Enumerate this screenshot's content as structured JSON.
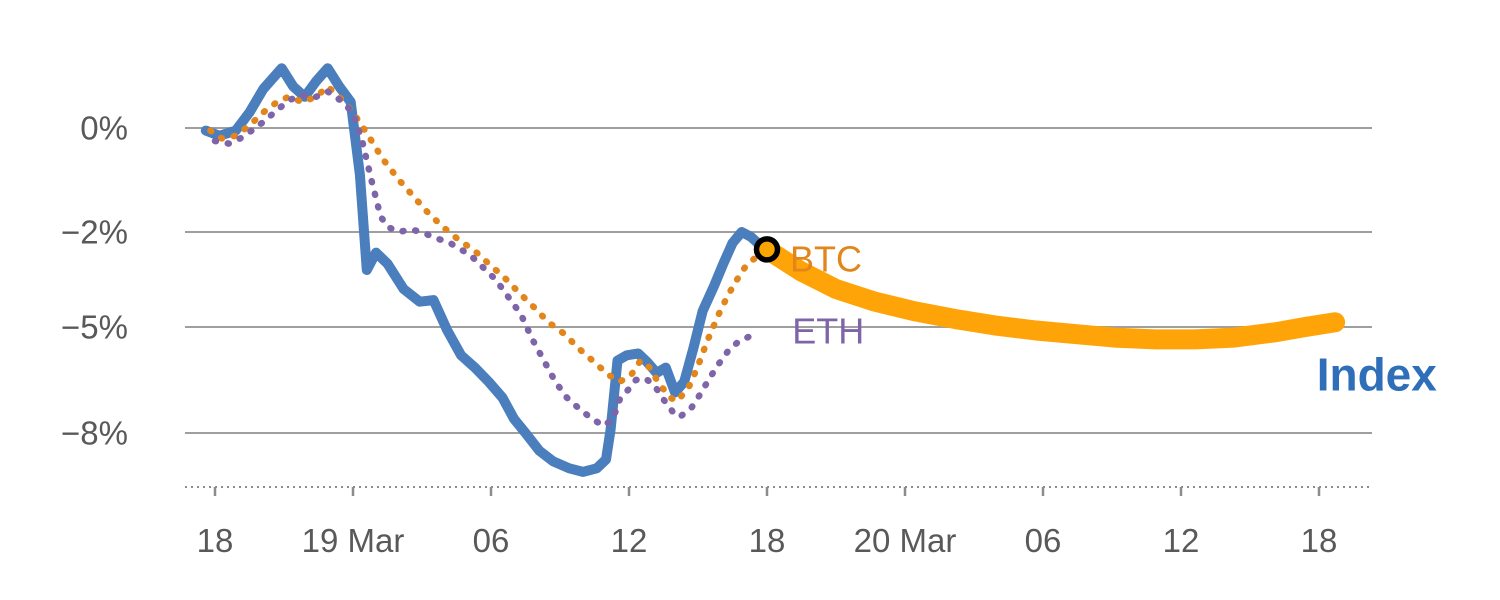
{
  "chart_data": {
    "type": "line",
    "title": "",
    "xlabel": "",
    "ylabel": "",
    "x_unit": "hours since 18:00 on 18 Mar",
    "ylim": [
      -9.5,
      1.6
    ],
    "xlim_hours": [
      -0.5,
      49
    ],
    "grid": true,
    "legend": "inline-labels",
    "colors": {
      "index_line": "#4a7ebc",
      "index_label": "#2f6fba",
      "btc": "#e2851b",
      "eth": "#7e64a8",
      "forecast_band": "#ffa408",
      "marker_fill": "#f9a602",
      "marker_ring": "#000000",
      "gridline": "#9f9f9f",
      "axis": "#8c8c8c",
      "tick_text": "#595959"
    },
    "y_ticks": [
      {
        "label": "0%",
        "value": 0
      },
      {
        "label": "−2%",
        "value": -2
      },
      {
        "label": "−5%",
        "value": -5
      },
      {
        "label": "−8%",
        "value": -8
      }
    ],
    "x_ticks": [
      {
        "label": "18",
        "t": 0
      },
      {
        "label": "19 Mar",
        "t": 6
      },
      {
        "label": "06",
        "t": 12
      },
      {
        "label": "12",
        "t": 18
      },
      {
        "label": "18",
        "t": 24
      },
      {
        "label": "20 Mar",
        "t": 30
      },
      {
        "label": "06",
        "t": 36
      },
      {
        "label": "12",
        "t": 42
      },
      {
        "label": "18",
        "t": 48
      }
    ],
    "series": [
      {
        "name": "Index",
        "color": "#4a7ebc",
        "style": "solid",
        "stroke_width": 10,
        "points": [
          [
            -0.4,
            -0.05
          ],
          [
            0.2,
            -0.15
          ],
          [
            0.9,
            -0.05
          ],
          [
            1.5,
            0.3
          ],
          [
            2.1,
            0.75
          ],
          [
            2.9,
            1.15
          ],
          [
            3.4,
            0.8
          ],
          [
            3.9,
            0.6
          ],
          [
            4.4,
            0.9
          ],
          [
            4.9,
            1.15
          ],
          [
            5.4,
            0.8
          ],
          [
            5.9,
            0.5
          ],
          [
            6.3,
            -0.9
          ],
          [
            6.6,
            -3.2
          ],
          [
            7.0,
            -2.65
          ],
          [
            7.5,
            -3.0
          ],
          [
            8.2,
            -3.8
          ],
          [
            8.9,
            -4.2
          ],
          [
            9.5,
            -4.15
          ],
          [
            10.1,
            -5.1
          ],
          [
            10.7,
            -5.8
          ],
          [
            11.3,
            -6.15
          ],
          [
            11.9,
            -6.55
          ],
          [
            12.5,
            -7.0
          ],
          [
            13.0,
            -7.6
          ],
          [
            13.5,
            -8.0
          ],
          [
            14.1,
            -8.5
          ],
          [
            14.7,
            -8.8
          ],
          [
            15.4,
            -9.0
          ],
          [
            16.0,
            -9.1
          ],
          [
            16.6,
            -9.0
          ],
          [
            17.0,
            -8.75
          ],
          [
            17.2,
            -7.9
          ],
          [
            17.5,
            -5.95
          ],
          [
            17.9,
            -5.8
          ],
          [
            18.4,
            -5.75
          ],
          [
            18.8,
            -6.0
          ],
          [
            19.2,
            -6.3
          ],
          [
            19.6,
            -6.15
          ],
          [
            20.0,
            -6.85
          ],
          [
            20.4,
            -6.55
          ],
          [
            20.8,
            -5.6
          ],
          [
            21.2,
            -4.5
          ],
          [
            21.7,
            -3.7
          ],
          [
            22.1,
            -3.0
          ],
          [
            22.5,
            -2.35
          ],
          [
            22.9,
            -2.0
          ],
          [
            23.3,
            -2.15
          ],
          [
            23.6,
            -2.35
          ],
          [
            24.0,
            -2.5
          ]
        ]
      },
      {
        "name": "BTC",
        "color": "#e2851b",
        "style": "dotted",
        "stroke_width": 6.5,
        "points": [
          [
            -0.2,
            -0.05
          ],
          [
            0.3,
            -0.2
          ],
          [
            0.9,
            -0.15
          ],
          [
            1.5,
            0.05
          ],
          [
            2.1,
            0.3
          ],
          [
            2.7,
            0.5
          ],
          [
            3.2,
            0.6
          ],
          [
            3.8,
            0.5
          ],
          [
            4.4,
            0.6
          ],
          [
            4.9,
            0.8
          ],
          [
            5.5,
            0.55
          ],
          [
            6.0,
            0.3
          ],
          [
            6.6,
            -0.1
          ],
          [
            7.3,
            -0.6
          ],
          [
            8.0,
            -1.0
          ],
          [
            8.6,
            -1.3
          ],
          [
            9.2,
            -1.6
          ],
          [
            9.9,
            -1.9
          ],
          [
            10.6,
            -2.25
          ],
          [
            11.3,
            -2.6
          ],
          [
            11.9,
            -3.0
          ],
          [
            12.6,
            -3.45
          ],
          [
            13.2,
            -3.9
          ],
          [
            13.9,
            -4.4
          ],
          [
            14.5,
            -4.85
          ],
          [
            15.2,
            -5.2
          ],
          [
            15.8,
            -5.6
          ],
          [
            16.5,
            -6.0
          ],
          [
            17.1,
            -6.35
          ],
          [
            17.6,
            -6.55
          ],
          [
            18.1,
            -6.35
          ],
          [
            18.5,
            -5.95
          ],
          [
            18.9,
            -6.15
          ],
          [
            19.3,
            -6.6
          ],
          [
            19.8,
            -7.0
          ],
          [
            20.1,
            -7.1
          ],
          [
            20.6,
            -6.7
          ],
          [
            21.0,
            -6.1
          ],
          [
            21.4,
            -5.4
          ],
          [
            21.9,
            -4.6
          ],
          [
            22.3,
            -4.0
          ],
          [
            22.7,
            -3.5
          ],
          [
            23.1,
            -3.05
          ],
          [
            23.6,
            -2.75
          ],
          [
            24.0,
            -2.55
          ],
          [
            24.3,
            -2.9
          ]
        ]
      },
      {
        "name": "ETH",
        "color": "#7e64a8",
        "style": "dotted",
        "stroke_width": 6.5,
        "points": [
          [
            0.0,
            -0.25
          ],
          [
            0.6,
            -0.3
          ],
          [
            1.1,
            -0.2
          ],
          [
            1.6,
            -0.05
          ],
          [
            2.2,
            0.15
          ],
          [
            2.7,
            0.35
          ],
          [
            3.3,
            0.55
          ],
          [
            3.8,
            0.63
          ],
          [
            4.3,
            0.58
          ],
          [
            4.9,
            0.7
          ],
          [
            5.4,
            0.55
          ],
          [
            6.0,
            0.3
          ],
          [
            6.4,
            -0.25
          ],
          [
            6.8,
            -1.0
          ],
          [
            7.2,
            -1.7
          ],
          [
            7.5,
            -1.9
          ],
          [
            8.0,
            -2.0
          ],
          [
            8.5,
            -1.95
          ],
          [
            9.0,
            -2.0
          ],
          [
            9.6,
            -2.2
          ],
          [
            10.1,
            -2.3
          ],
          [
            10.7,
            -2.55
          ],
          [
            11.2,
            -2.8
          ],
          [
            11.7,
            -3.15
          ],
          [
            12.2,
            -3.5
          ],
          [
            12.7,
            -4.0
          ],
          [
            13.3,
            -4.6
          ],
          [
            13.8,
            -5.35
          ],
          [
            14.3,
            -5.95
          ],
          [
            14.8,
            -6.55
          ],
          [
            15.3,
            -7.0
          ],
          [
            15.9,
            -7.35
          ],
          [
            16.4,
            -7.6
          ],
          [
            16.9,
            -7.8
          ],
          [
            17.3,
            -7.6
          ],
          [
            17.6,
            -7.05
          ],
          [
            18.0,
            -6.75
          ],
          [
            18.3,
            -6.5
          ],
          [
            18.7,
            -6.45
          ],
          [
            19.1,
            -6.65
          ],
          [
            19.5,
            -7.05
          ],
          [
            19.9,
            -7.4
          ],
          [
            20.2,
            -7.55
          ],
          [
            20.7,
            -7.3
          ],
          [
            21.1,
            -6.9
          ],
          [
            21.5,
            -6.45
          ],
          [
            22.0,
            -5.95
          ],
          [
            22.4,
            -5.6
          ],
          [
            22.8,
            -5.4
          ],
          [
            23.3,
            -5.25
          ]
        ]
      }
    ],
    "forecast": {
      "name": "Index forecast band",
      "color": "#ffa408",
      "stroke_width": 20,
      "points": [
        [
          24.0,
          -2.55
        ],
        [
          25.5,
          -3.25
        ],
        [
          27.0,
          -3.8
        ],
        [
          28.7,
          -4.2
        ],
        [
          30.4,
          -4.5
        ],
        [
          32.2,
          -4.75
        ],
        [
          33.9,
          -4.95
        ],
        [
          35.7,
          -5.1
        ],
        [
          37.4,
          -5.2
        ],
        [
          39.1,
          -5.3
        ],
        [
          40.9,
          -5.35
        ],
        [
          42.6,
          -5.35
        ],
        [
          44.3,
          -5.3
        ],
        [
          46.1,
          -5.15
        ],
        [
          47.4,
          -5.0
        ],
        [
          48.7,
          -4.85
        ]
      ]
    },
    "marker": {
      "t": 24,
      "value": -2.55,
      "fill": "#f9a602",
      "ring_color": "#000000"
    },
    "labels": [
      {
        "text": "BTC",
        "color": "#e2851b",
        "t": 25.0,
        "value": -2.85,
        "size": 36,
        "bold": false
      },
      {
        "text": "ETH",
        "color": "#7e64a8",
        "t": 25.1,
        "value": -5.12,
        "size": 36,
        "bold": false
      },
      {
        "text": "Index",
        "color": "#2f6fba",
        "t": 47.9,
        "value": -6.35,
        "size": 46,
        "bold": true
      }
    ]
  }
}
